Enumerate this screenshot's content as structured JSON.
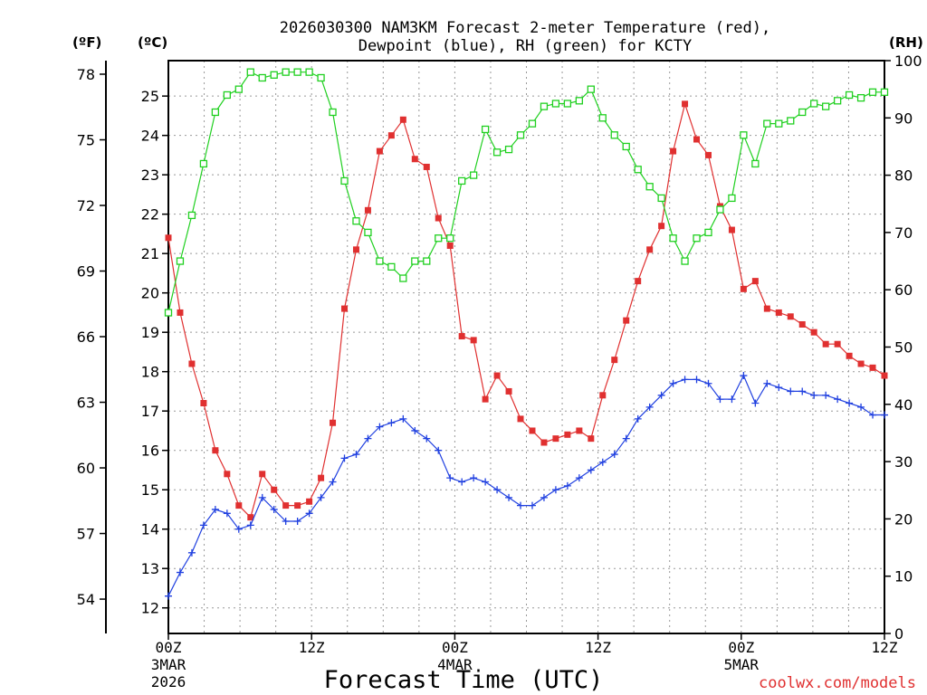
{
  "chart_data": {
    "type": "line",
    "title_line1": "2026030300 NAM3KM Forecast 2-meter Temperature (red),",
    "title_line2": "Dewpoint (blue), RH (green) for KCTY",
    "xlabel": "Forecast Time (UTC)",
    "credit": "coolwx.com/models",
    "axis_labels": {
      "left_f": "(ºF)",
      "left_c": "(ºC)",
      "right_rh": "(RH)"
    },
    "x_hours_range": [
      0,
      60
    ],
    "x_ticks": [
      {
        "hour": 0,
        "label": "00Z",
        "date": "3MAR",
        "year": "2026"
      },
      {
        "hour": 12,
        "label": "12Z",
        "date": "",
        "year": ""
      },
      {
        "hour": 24,
        "label": "00Z",
        "date": "4MAR",
        "year": ""
      },
      {
        "hour": 36,
        "label": "12Z",
        "date": "",
        "year": ""
      },
      {
        "hour": 48,
        "label": "00Z",
        "date": "5MAR",
        "year": ""
      },
      {
        "hour": 60,
        "label": "12Z",
        "date": "",
        "year": ""
      }
    ],
    "ylim_c": [
      11.35,
      25.9
    ],
    "yticks_c": [
      12,
      13,
      14,
      15,
      16,
      17,
      18,
      19,
      20,
      21,
      22,
      23,
      24,
      25
    ],
    "yticks_f": [
      54,
      57,
      60,
      63,
      66,
      69,
      72,
      75,
      78
    ],
    "ylim_rh": [
      0,
      100
    ],
    "yticks_rh": [
      0,
      10,
      20,
      30,
      40,
      50,
      60,
      70,
      80,
      90,
      100
    ],
    "series": [
      {
        "name": "Temperature",
        "units": "C",
        "color": "#e03030",
        "marker": "filled-square",
        "values": [
          21.4,
          19.5,
          18.2,
          17.2,
          16.0,
          15.4,
          14.6,
          14.3,
          15.4,
          15.0,
          14.6,
          14.6,
          14.7,
          15.3,
          16.7,
          19.6,
          21.1,
          22.1,
          23.6,
          24.0,
          24.4,
          23.4,
          23.2,
          21.9,
          21.2,
          18.9,
          18.8,
          17.3,
          17.9,
          17.5,
          16.8,
          16.5,
          16.2,
          16.3,
          16.4,
          16.5,
          16.3,
          17.4,
          18.3,
          19.3,
          20.3,
          21.1,
          21.7,
          23.6,
          24.8,
          23.9,
          23.5,
          22.2,
          21.6,
          20.1,
          20.3,
          19.6,
          19.5,
          19.4,
          19.2,
          19.0,
          18.7,
          18.7,
          18.4,
          18.2,
          18.1,
          17.9
        ]
      },
      {
        "name": "Dewpoint",
        "units": "C",
        "color": "#2040e0",
        "marker": "plus",
        "values": [
          12.3,
          12.9,
          13.4,
          14.1,
          14.5,
          14.4,
          14.0,
          14.1,
          14.8,
          14.5,
          14.2,
          14.2,
          14.4,
          14.8,
          15.2,
          15.8,
          15.9,
          16.3,
          16.6,
          16.7,
          16.8,
          16.5,
          16.3,
          16.0,
          15.3,
          15.2,
          15.3,
          15.2,
          15.0,
          14.8,
          14.6,
          14.6,
          14.8,
          15.0,
          15.1,
          15.3,
          15.5,
          15.7,
          15.9,
          16.3,
          16.8,
          17.1,
          17.4,
          17.7,
          17.8,
          17.8,
          17.7,
          17.3,
          17.3,
          17.9,
          17.2,
          17.7,
          17.6,
          17.5,
          17.5,
          17.4,
          17.4,
          17.3,
          17.2,
          17.1,
          16.9,
          16.9
        ]
      },
      {
        "name": "RH",
        "units": "%",
        "color": "#20d020",
        "marker": "open-square",
        "values": [
          56,
          65,
          73,
          82,
          91,
          94,
          95,
          98,
          97,
          97.5,
          98,
          98,
          98,
          97,
          91,
          79,
          72,
          70,
          65,
          64,
          62,
          65,
          65,
          69,
          69,
          79,
          80,
          88,
          84,
          84.5,
          87,
          89,
          92,
          92.5,
          92.5,
          93,
          95,
          90,
          87,
          85,
          81,
          78,
          76,
          69,
          65,
          69,
          70,
          74,
          76,
          87,
          82,
          89,
          89,
          89.5,
          91,
          92.5,
          92,
          93,
          94,
          93.5,
          94.5,
          94.5
        ]
      }
    ]
  }
}
